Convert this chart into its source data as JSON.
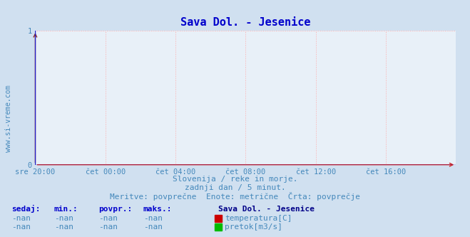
{
  "title": "Sava Dol. - Jesenice",
  "title_color": "#0000cc",
  "title_fontsize": 11,
  "bg_color": "#d0e0f0",
  "plot_bg_color": "#e8f0f8",
  "grid_color": "#ffaaaa",
  "grid_linestyle": ":",
  "x_labels": [
    "sre 20:00",
    "čet 00:00",
    "čet 04:00",
    "čet 08:00",
    "čet 12:00",
    "čet 16:00"
  ],
  "x_ticks_pos": [
    0,
    4,
    8,
    12,
    16,
    20
  ],
  "x_max": 24,
  "ylim": [
    0,
    1
  ],
  "y_ticks": [
    0,
    1
  ],
  "tick_color": "#4488bb",
  "tick_fontsize": 7.5,
  "axis_line_color": "#2222cc",
  "arrow_top_color": "#882222",
  "watermark": "www.si-vreme.com",
  "watermark_color": "#4488bb",
  "watermark_fontsize": 7,
  "sub_line1": "Slovenija / reke in morje.",
  "sub_line2": "zadnji dan / 5 minut.",
  "sub_line3": "Meritve: povprečne  Enote: metrične  Črta: povprečje",
  "sub_color": "#4488bb",
  "sub_fontsize": 8,
  "legend_title": "Sava Dol. - Jesenice",
  "legend_title_color": "#000088",
  "legend_fontsize": 8,
  "legend_value_color": "#4488bb",
  "table_headers": [
    "sedaj:",
    "min.:",
    "povpr.:",
    "maks.:"
  ],
  "table_values": [
    "-nan",
    "-nan",
    "-nan",
    "-nan"
  ],
  "table_header_color": "#0000cc",
  "legend_items": [
    {
      "label": "temperatura[C]",
      "color": "#cc0000"
    },
    {
      "label": "pretok[m3/s]",
      "color": "#00bb00"
    }
  ]
}
